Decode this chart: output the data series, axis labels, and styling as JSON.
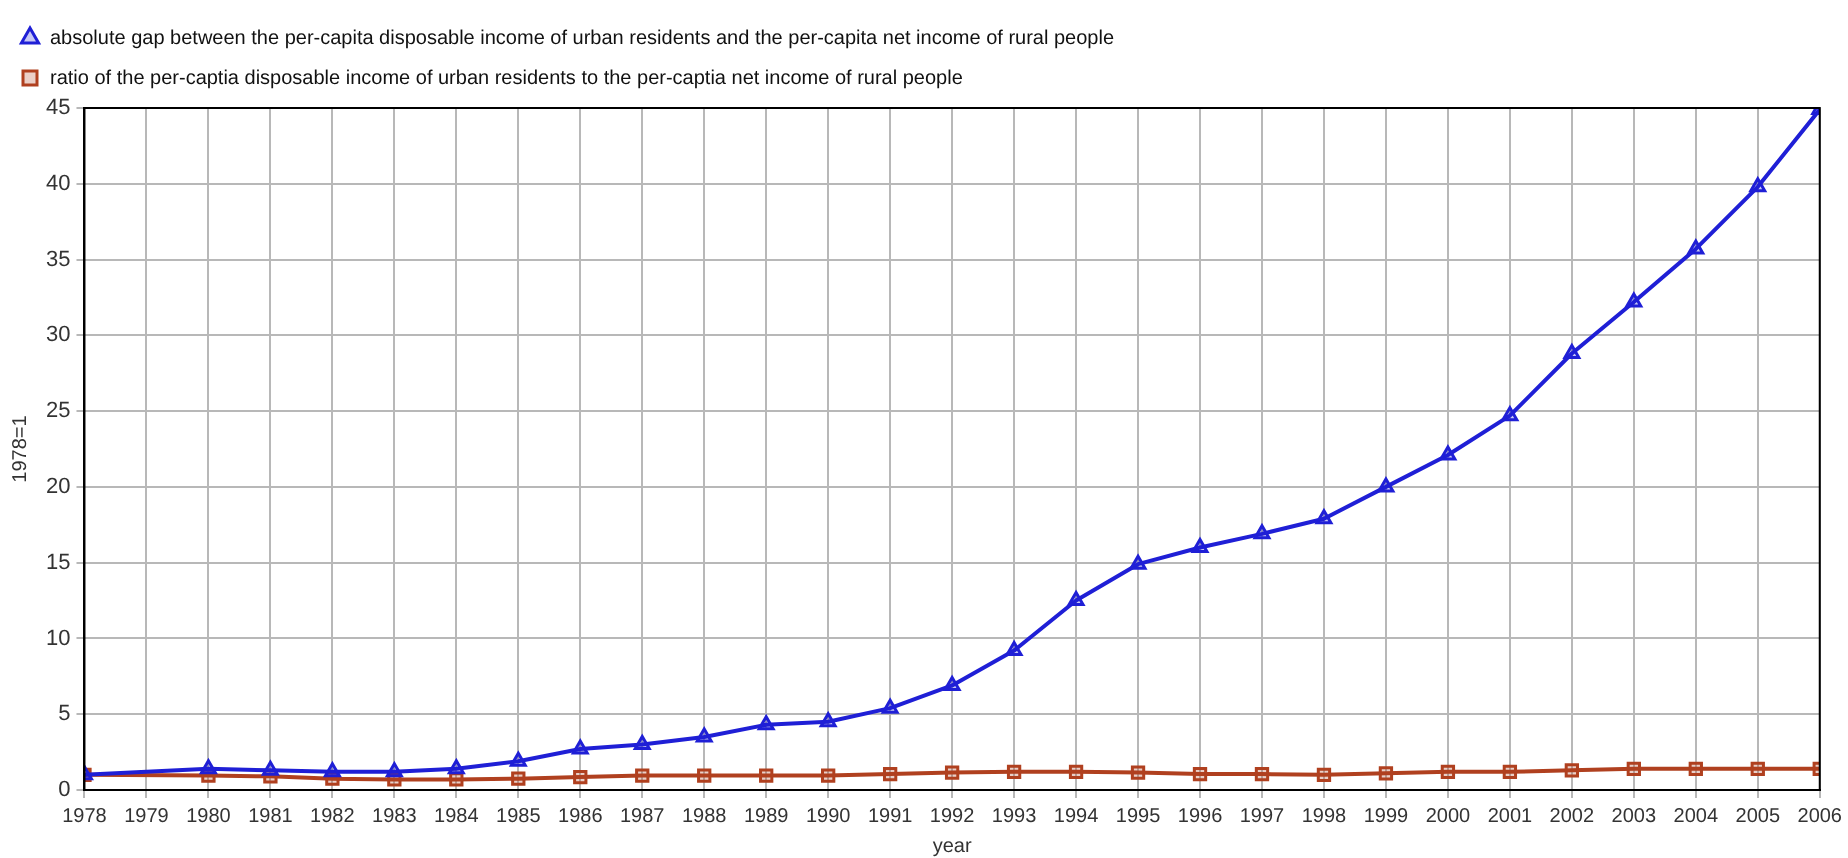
{
  "chart_data": {
    "type": "line",
    "xlabel": "year",
    "ylabel": "1978=1",
    "x": [
      1978,
      1980,
      1981,
      1982,
      1983,
      1984,
      1985,
      1986,
      1987,
      1988,
      1989,
      1990,
      1991,
      1992,
      1993,
      1994,
      1995,
      1996,
      1997,
      1998,
      1999,
      2000,
      2001,
      2002,
      2003,
      2004,
      2005,
      2006
    ],
    "series": [
      {
        "name": "absolute gap between the per-capita disposable income of urban residents and the per-capita net income of rural people",
        "color": "#1f1fd6",
        "marker": "triangle",
        "values": [
          1.0,
          1.4,
          1.3,
          1.2,
          1.2,
          1.4,
          1.9,
          2.7,
          3.0,
          3.5,
          4.3,
          4.5,
          5.4,
          6.9,
          9.2,
          12.5,
          14.9,
          16.0,
          16.9,
          17.9,
          20.0,
          22.1,
          24.7,
          28.8,
          32.2,
          35.7,
          39.8,
          44.9
        ]
      },
      {
        "name": "ratio of the per-captia disposable income of urban residents to the per-captia net income of rural people",
        "color": "#b0401f",
        "marker": "square",
        "values": [
          1.0,
          0.95,
          0.9,
          0.75,
          0.7,
          0.7,
          0.75,
          0.85,
          0.95,
          0.95,
          0.95,
          0.95,
          1.05,
          1.15,
          1.2,
          1.2,
          1.15,
          1.05,
          1.05,
          1.0,
          1.1,
          1.2,
          1.2,
          1.3,
          1.4,
          1.4,
          1.4,
          1.4
        ]
      }
    ],
    "xlim": [
      1978,
      2006
    ],
    "xticks": [
      1978,
      1979,
      1980,
      1981,
      1982,
      1983,
      1984,
      1985,
      1986,
      1987,
      1988,
      1989,
      1990,
      1991,
      1992,
      1993,
      1994,
      1995,
      1996,
      1997,
      1998,
      1999,
      2000,
      2001,
      2002,
      2003,
      2004,
      2005,
      2006
    ],
    "ylim": [
      0,
      45
    ],
    "yticks": [
      0,
      5,
      10,
      15,
      20,
      25,
      30,
      35,
      40,
      45
    ],
    "grid": true,
    "legend": "top left",
    "line_style": "solid"
  }
}
